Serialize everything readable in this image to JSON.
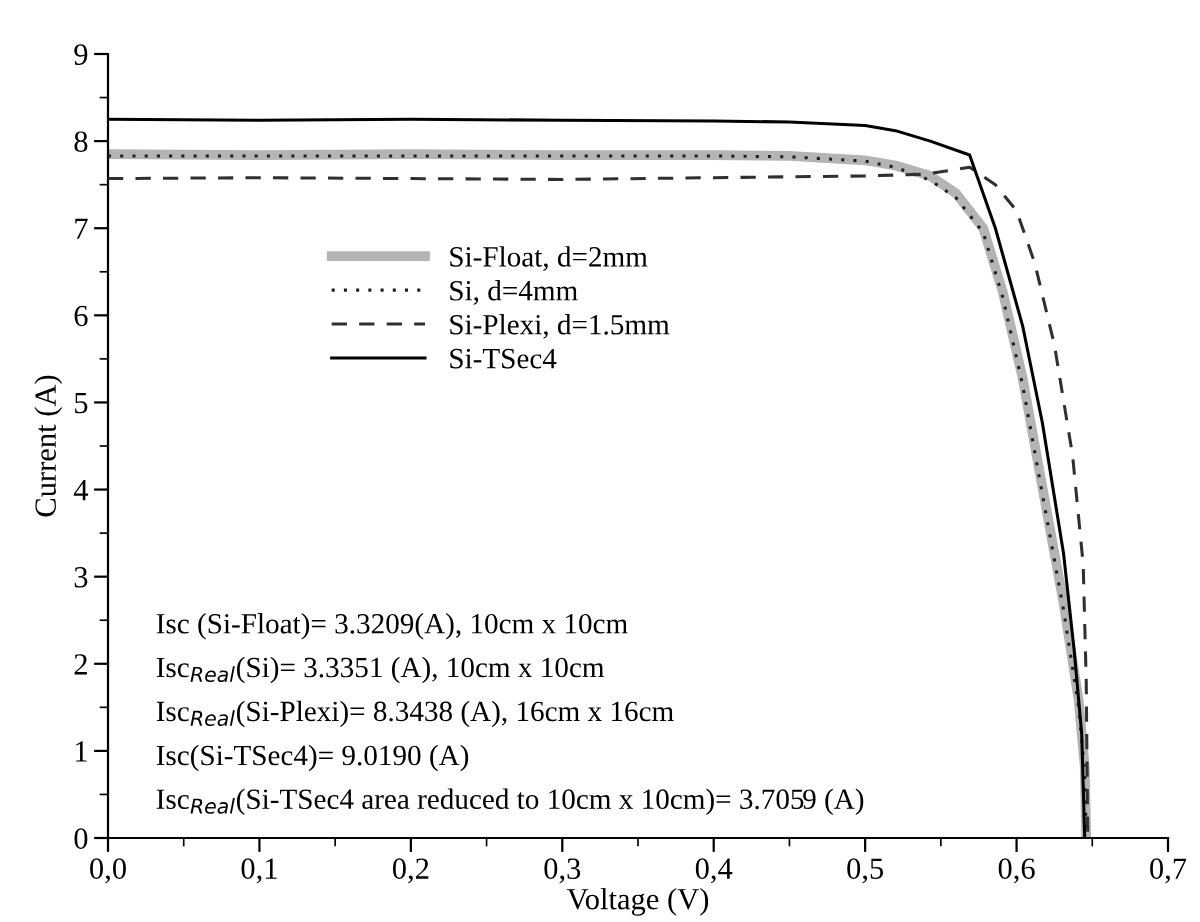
{
  "chart_data": {
    "type": "line",
    "xlabel": "Voltage (V)",
    "ylabel": "Current (A)",
    "xlim": [
      0,
      0.7
    ],
    "ylim": [
      0,
      9
    ],
    "xticks": [
      {
        "value": 0,
        "label": "0,0"
      },
      {
        "value": 0.1,
        "label": "0,1"
      },
      {
        "value": 0.2,
        "label": "0,2"
      },
      {
        "value": 0.3,
        "label": "0,3"
      },
      {
        "value": 0.4,
        "label": "0,4"
      },
      {
        "value": 0.5,
        "label": "0,5"
      },
      {
        "value": 0.6,
        "label": "0,6"
      },
      {
        "value": 0.7,
        "label": "0,7"
      }
    ],
    "yticks": [
      0,
      1,
      2,
      3,
      4,
      5,
      6,
      7,
      8,
      9
    ],
    "grid": false,
    "legend": "upper left",
    "marker": "none",
    "series": [
      {
        "name": "Si-Float, d=2mm",
        "color": "#b4b4b4",
        "line_style": "solid",
        "x": [
          0,
          0.1,
          0.2,
          0.3,
          0.4,
          0.45,
          0.5,
          0.52,
          0.543,
          0.56,
          0.578,
          0.591,
          0.604,
          0.617,
          0.631,
          0.641,
          0.645,
          0.646
        ],
        "values": [
          7.85,
          7.84,
          7.85,
          7.84,
          7.84,
          7.83,
          7.78,
          7.72,
          7.6,
          7.4,
          7.0,
          6.26,
          5.28,
          4.03,
          2.7,
          1.58,
          0.82,
          0
        ]
      },
      {
        "name": "Si, d=4mm",
        "color": "#202020",
        "line_style": "dotted",
        "x": [
          0,
          0.1,
          0.2,
          0.3,
          0.4,
          0.45,
          0.5,
          0.52,
          0.543,
          0.56,
          0.578,
          0.591,
          0.604,
          0.617,
          0.631,
          0.641,
          0.645,
          0.646
        ],
        "values": [
          7.83,
          7.83,
          7.83,
          7.83,
          7.83,
          7.82,
          7.77,
          7.7,
          7.55,
          7.35,
          6.95,
          6.2,
          5.2,
          3.95,
          2.62,
          1.5,
          0.75,
          0
        ]
      },
      {
        "name": "Si-Plexi, d=1.5mm",
        "color": "#303030",
        "line_style": "dashed",
        "x": [
          0,
          0.1,
          0.2,
          0.3,
          0.4,
          0.5,
          0.54,
          0.569,
          0.586,
          0.6,
          0.612,
          0.625,
          0.637,
          0.644,
          0.646,
          0.647
        ],
        "values": [
          7.57,
          7.58,
          7.57,
          7.56,
          7.58,
          7.6,
          7.62,
          7.7,
          7.5,
          7.2,
          6.6,
          5.66,
          4.39,
          3.14,
          1.8,
          0
        ]
      },
      {
        "name": "Si-TSec4",
        "color": "#000000",
        "line_style": "solid",
        "x": [
          0,
          0.1,
          0.2,
          0.3,
          0.4,
          0.45,
          0.5,
          0.52,
          0.543,
          0.569,
          0.586,
          0.604,
          0.617,
          0.631,
          0.638,
          0.643,
          0.645
        ],
        "values": [
          8.25,
          8.24,
          8.25,
          8.24,
          8.23,
          8.22,
          8.18,
          8.12,
          8.0,
          7.84,
          7.0,
          5.88,
          4.77,
          3.27,
          2.16,
          1.2,
          0
        ]
      }
    ],
    "annotations": [
      "Isc (Si-Float)= 3.3209(A), 10cm x 10cm",
      "Isc$_{Real}$(Si)= 3.3351 (A), 10cm x 10cm",
      "Isc$_{Real}$(Si-Plexi)= 8.3438 (A), 16cm x 16cm",
      "Isc(Si-TSec4)= 9.0190 (A)",
      "Isc$_{Real}$(Si-TSec4 area reduced to 10cm x 10cm)= 3.7059 (A)"
    ]
  }
}
